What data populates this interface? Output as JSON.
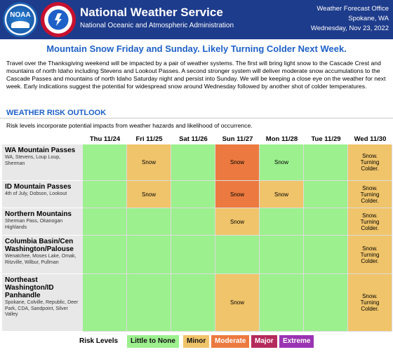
{
  "header": {
    "logo_left": "NOAA",
    "title": "National Weather Service",
    "subtitle": "National Oceanic and Atmospheric Administration",
    "office_line1": "Weather Forecast Office",
    "office_line2": "Spokane, WA",
    "office_line3": "Wednesday, Nov 23, 2022"
  },
  "headline": "Mountain Snow Friday and Sunday. Likely Turning Colder Next Week.",
  "summary": "Travel over the Thanksgiving weekend will be impacted by a pair of weather systems. The first will bring light snow to the Cascade Crest and mountains of north Idaho including Stevens and Lookout Passes. A second stronger system will deliver moderate snow accumulations to the Cascade Passes and mountains of north Idaho Saturday night and persist into Sunday. We will be keeping a close eye on the weather for next week. Early indications suggest the potential for widespread snow around Wednesday followed by another shot of colder temperatures.",
  "section_title": "WEATHER RISK OUTLOOK",
  "risk_note": "Risk levels incorporate potential impacts from weather hazards and likelihood of occurrence.",
  "days": [
    "Thu 11/24",
    "Fri 11/25",
    "Sat 11/26",
    "Sun 11/27",
    "Mon 11/28",
    "Tue 11/29",
    "Wed 11/30"
  ],
  "rows": [
    {
      "name": "WA Mountain Passes",
      "sub": "WA, Stevens, Loup Loup, Sherman",
      "cells": [
        {
          "level": "none",
          "text": ""
        },
        {
          "level": "minor",
          "text": "Snow"
        },
        {
          "level": "none",
          "text": ""
        },
        {
          "level": "moderate",
          "text": "Snow"
        },
        {
          "level": "none",
          "text": "Snow"
        },
        {
          "level": "none",
          "text": ""
        },
        {
          "level": "minor",
          "text": "Snow. Turning Colder."
        }
      ]
    },
    {
      "name": "ID Mountain Passes",
      "sub": "4th of July, Dobson, Lookout",
      "cells": [
        {
          "level": "none",
          "text": ""
        },
        {
          "level": "minor",
          "text": "Snow"
        },
        {
          "level": "none",
          "text": ""
        },
        {
          "level": "moderate",
          "text": "Snow"
        },
        {
          "level": "minor",
          "text": "Snow"
        },
        {
          "level": "none",
          "text": ""
        },
        {
          "level": "minor",
          "text": "Snow. Turning Colder."
        }
      ]
    },
    {
      "name": "Northern Mountains",
      "sub": "Sherman Pass, Okanogan Highlands",
      "cells": [
        {
          "level": "none",
          "text": ""
        },
        {
          "level": "none",
          "text": ""
        },
        {
          "level": "none",
          "text": ""
        },
        {
          "level": "minor",
          "text": "Snow"
        },
        {
          "level": "none",
          "text": ""
        },
        {
          "level": "none",
          "text": ""
        },
        {
          "level": "minor",
          "text": "Snow. Turning Colder."
        }
      ]
    },
    {
      "name": "Columbia Basin/Cen Washington/Palouse",
      "sub": "Wenatchee, Moses Lake, Omak, Ritzville, Wilbur, Pullman",
      "cells": [
        {
          "level": "none",
          "text": ""
        },
        {
          "level": "none",
          "text": ""
        },
        {
          "level": "none",
          "text": ""
        },
        {
          "level": "none",
          "text": ""
        },
        {
          "level": "none",
          "text": ""
        },
        {
          "level": "none",
          "text": ""
        },
        {
          "level": "minor",
          "text": "Snow. Turning Colder."
        }
      ]
    },
    {
      "name": "Northeast Washington/ID Panhandle",
      "sub": "Spokane, Colville, Republic, Deer Park, CDA, Sandpoint, Silver Valley",
      "cells": [
        {
          "level": "none",
          "text": ""
        },
        {
          "level": "none",
          "text": ""
        },
        {
          "level": "none",
          "text": ""
        },
        {
          "level": "minor",
          "text": "Snow"
        },
        {
          "level": "none",
          "text": ""
        },
        {
          "level": "none",
          "text": ""
        },
        {
          "level": "minor",
          "text": "Snow. Turning Colder."
        }
      ]
    }
  ],
  "legend": {
    "label": "Risk Levels",
    "items": [
      {
        "key": "none",
        "label": "Little to None"
      },
      {
        "key": "minor",
        "label": "Minor"
      },
      {
        "key": "moderate",
        "label": "Moderate"
      },
      {
        "key": "major",
        "label": "Major"
      },
      {
        "key": "extreme",
        "label": "Extreme"
      }
    ]
  },
  "colors": {
    "header_bg": "#1e3c8c",
    "accent_blue": "#1e60c8",
    "none": "#9cf08e",
    "minor": "#f0c46a",
    "moderate": "#ec7a40",
    "major": "#b52a5c",
    "extreme": "#9a34b2"
  }
}
